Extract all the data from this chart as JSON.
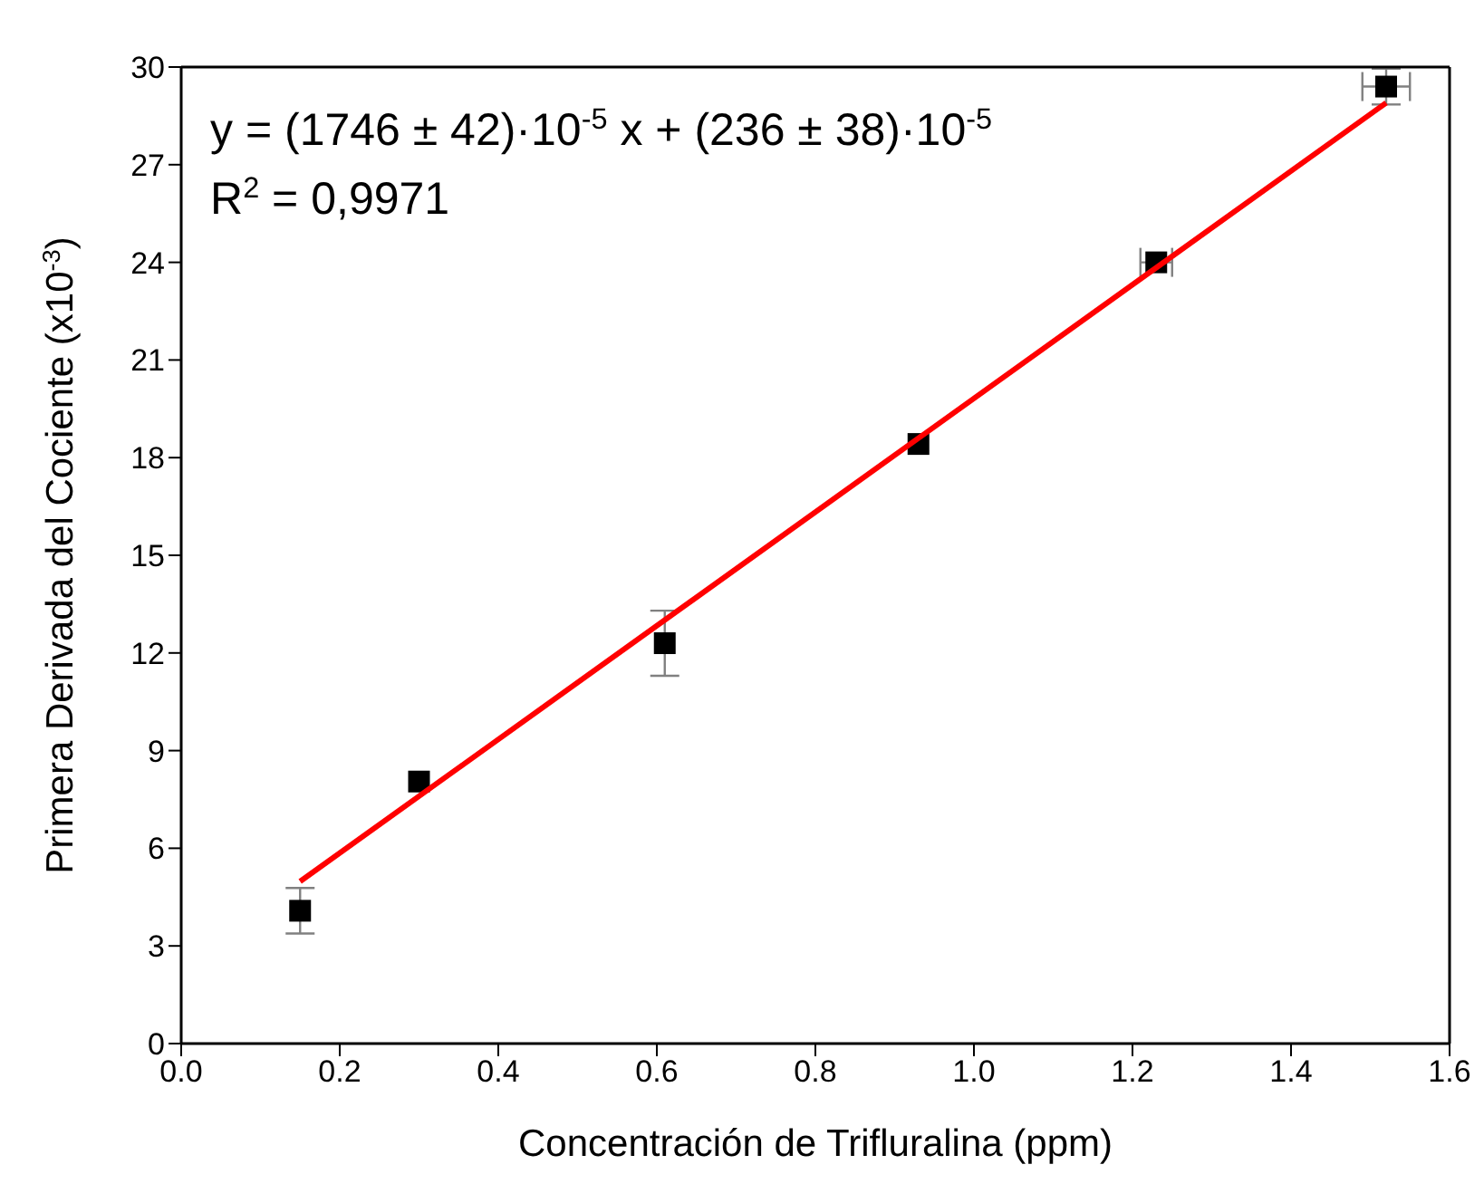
{
  "chart_data": {
    "type": "scatter",
    "xlabel": "Concentración de Trifluralina (ppm)",
    "ylabel": "Primera Derivada del Cociente (x10$^{-3}$)",
    "annotations": [
      "y = (1746 ± 42)·10$^{-5}$ x + (236 ± 38)·10$^{-5}$",
      "R$^{2}$ = 0,9971"
    ],
    "x": [
      0.15,
      0.3,
      0.61,
      0.93,
      1.23,
      1.52
    ],
    "series": [
      {
        "color": "#000000",
        "marker": "square",
        "values": [
          4.08,
          8.05,
          12.3,
          18.42,
          24.0,
          29.4
        ],
        "errors": [
          0.7,
          null,
          1.0,
          null,
          null,
          0.55
        ],
        "xerrors": [
          null,
          null,
          null,
          null,
          0.02,
          0.03
        ]
      },
      {
        "type": "line",
        "color": "#ff0000",
        "marker": "none",
        "line_style": "solid",
        "x": [
          0.15,
          1.52
        ],
        "values": [
          4.98,
          28.9
        ]
      }
    ],
    "xlim": [
      0,
      1.6
    ],
    "xticks": [
      {
        "value": 0,
        "label": "0.0"
      },
      {
        "value": 0.2,
        "label": "0.2"
      },
      {
        "value": 0.4,
        "label": "0.4"
      },
      {
        "value": 0.6,
        "label": "0.6"
      },
      {
        "value": 0.8,
        "label": "0.8"
      },
      {
        "value": 1,
        "label": "1.0"
      },
      {
        "value": 1.2,
        "label": "1.2"
      },
      {
        "value": 1.4,
        "label": "1.4"
      },
      {
        "value": 1.6,
        "label": "1.6"
      }
    ],
    "ylim": [
      0,
      30
    ],
    "yticks": [
      0,
      3,
      6,
      9,
      12,
      15,
      18,
      21,
      24,
      27,
      30
    ],
    "grid": false,
    "legend": false
  }
}
